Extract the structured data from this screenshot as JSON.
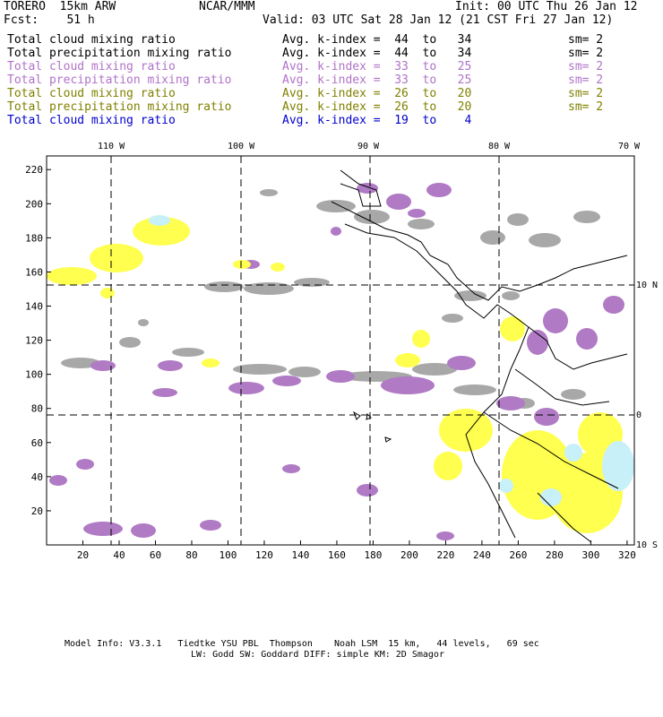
{
  "header": {
    "line1_left": "TORERO  15km ARW",
    "line1_center": "NCAR/MMM",
    "line1_right": "Init: 00 UTC Thu 26 Jan 12",
    "line2_left": "Fcst:    51 h",
    "line2_right": "Valid: 03 UTC Sat 28 Jan 12 (21 CST Fri 27 Jan 12)"
  },
  "legend": [
    {
      "field": "Total cloud mixing ratio",
      "stat": "Avg. k-index =  44  to   34",
      "sm": "sm= 2",
      "color": "#000000"
    },
    {
      "field": "Total precipitation mixing ratio",
      "stat": "Avg. k-index =  44  to   34",
      "sm": "sm= 2",
      "color": "#000000"
    },
    {
      "field": "Total cloud mixing ratio",
      "stat": "Avg. k-index =  33  to   25",
      "sm": "sm= 2",
      "color": "#b072c8"
    },
    {
      "field": "Total precipitation mixing ratio",
      "stat": "Avg. k-index =  33  to   25",
      "sm": "sm= 2",
      "color": "#b072c8"
    },
    {
      "field": "Total cloud mixing ratio",
      "stat": "Avg. k-index =  26  to   20",
      "sm": "sm= 2",
      "color": "#808000"
    },
    {
      "field": "Total precipitation mixing ratio",
      "stat": "Avg. k-index =  26  to   20",
      "sm": "sm= 2",
      "color": "#808000"
    },
    {
      "field": "Total cloud mixing ratio",
      "stat": "Avg. k-index =  19  to    4",
      "sm": "",
      "color": "#0000cc"
    }
  ],
  "map": {
    "top_lon_labels": [
      "110 W",
      "100 W",
      "90 W",
      "80 W",
      "70 W"
    ],
    "right_lat_labels": [
      "10 N",
      "0",
      "10 S"
    ],
    "x_ticks": [
      "20",
      "40",
      "60",
      "80",
      "100",
      "120",
      "140",
      "160",
      "180",
      "200",
      "220",
      "240",
      "260",
      "280",
      "300",
      "320"
    ],
    "y_ticks": [
      "20",
      "40",
      "60",
      "80",
      "100",
      "120",
      "140",
      "160",
      "180",
      "200",
      "220"
    ],
    "colors": {
      "gray_cloud": "#a8a8a8",
      "purple_cloud": "#b07ac4",
      "yellow_precip": "#ffff50",
      "cyan_precip": "#c8f0f8",
      "coastline": "#000000"
    }
  },
  "footer": {
    "line1": "Model Info: V3.3.1   Tiedtke YSU PBL  Thompson    Noah LSM  15 km,   44 levels,   69 sec",
    "line2": "LW: Godd SW: Goddard DIFF: simple KM: 2D Smagor"
  }
}
